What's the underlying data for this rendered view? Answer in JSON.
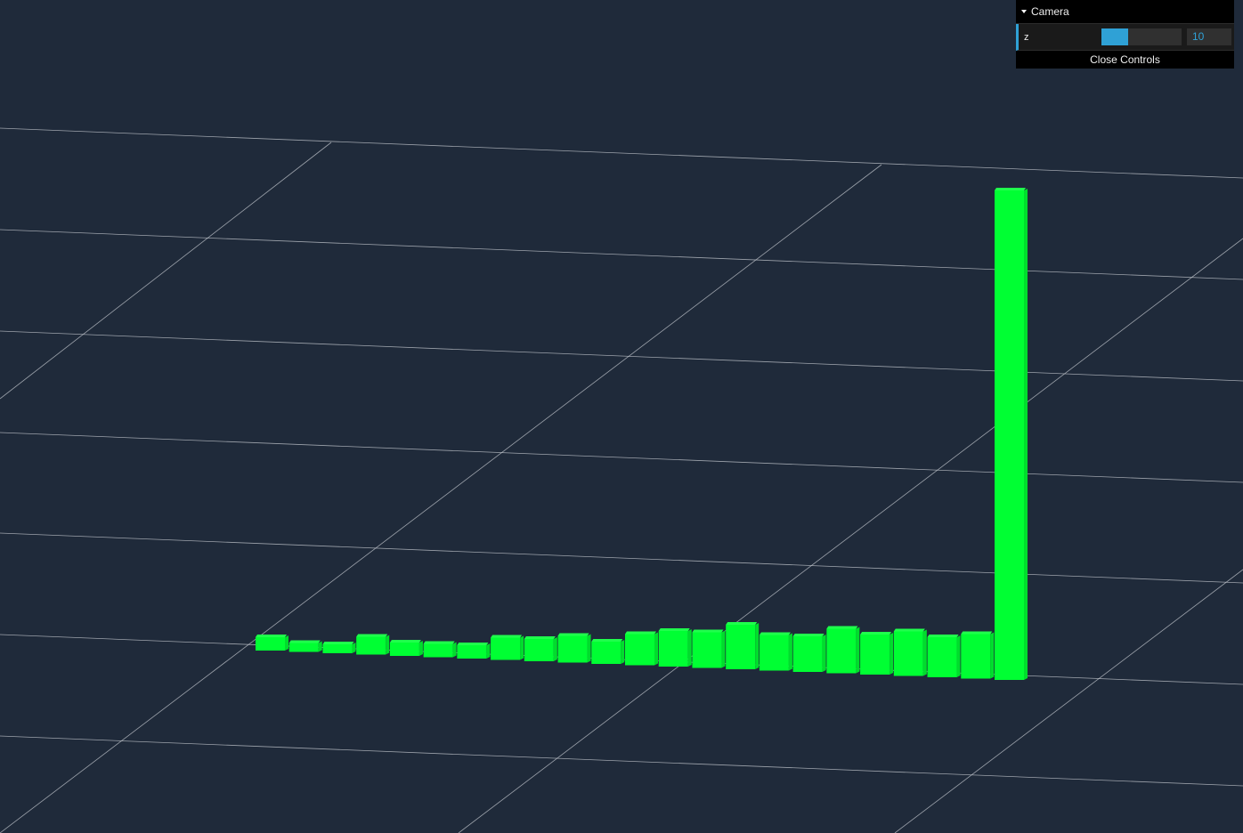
{
  "gui": {
    "folder_title": "Camera",
    "controls": [
      {
        "label": "z",
        "value": "10",
        "slider_fraction": 0.33
      }
    ],
    "close_label": "Close Controls",
    "accent_color": "#2fa1d6"
  },
  "scene": {
    "background_color": "#1f2a3a",
    "grid_color": "#c8ccd2",
    "bar_color": "#00ff33",
    "bar_heights": [
      0.3,
      0.2,
      0.2,
      0.4,
      0.3,
      0.3,
      0.3,
      0.5,
      0.5,
      0.6,
      0.5,
      0.7,
      0.8,
      0.8,
      1.0,
      0.8,
      0.8,
      1.0,
      0.9,
      1.0,
      0.9,
      1.0,
      11.0
    ]
  }
}
